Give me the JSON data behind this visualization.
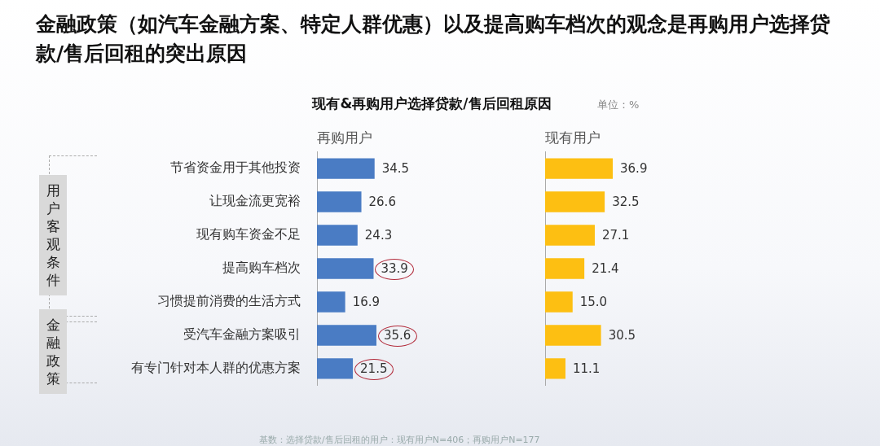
{
  "chart_data": [
    {
      "type": "bar",
      "orientation": "horizontal",
      "title": "金融政策（如汽车金融方案、特定人群优惠）以及提高购车档次的观念是再购用户选择贷款/售后回租的突出原因",
      "subtitle": "现有&再购用户选择贷款/售后回租原因",
      "categories": [
        "节省资金用于其他投资",
        "让现金流更宽裕",
        "现有购车资金不足",
        "提高购车档次",
        "习惯提前消费的生活方式",
        "受汽车金融方案吸引",
        "有专门针对本人群的优惠方案"
      ],
      "series": [
        {
          "name": "再购用户",
          "color": "#4a7cc4",
          "values": [
            34.5,
            26.6,
            24.3,
            33.9,
            16.9,
            35.6,
            21.5
          ]
        }
      ],
      "tick_labels": "y",
      "data_labels": true,
      "grid": false,
      "legend": false,
      "annotations": [
        "单位：%",
        "用户客观条件",
        "金融政策",
        "基数：选择贷款/售后回租的用户：现有用户N=406；再购用户N=177"
      ]
    },
    {
      "type": "bar",
      "orientation": "horizontal",
      "categories": [
        null,
        null,
        null,
        null,
        null,
        null,
        null
      ],
      "series": [
        {
          "name": "现有用户",
          "color": "#fdbf12",
          "values": [
            36.9,
            32.5,
            27.1,
            21.4,
            15.0,
            30.5,
            11.1
          ],
          "value_labels": [
            "36.9",
            "32.5",
            "27.1",
            "21.4",
            "15.0",
            "30.5",
            "11.1"
          ]
        }
      ],
      "tick_labels": false,
      "grid": false,
      "legend": false
    }
  ]
}
